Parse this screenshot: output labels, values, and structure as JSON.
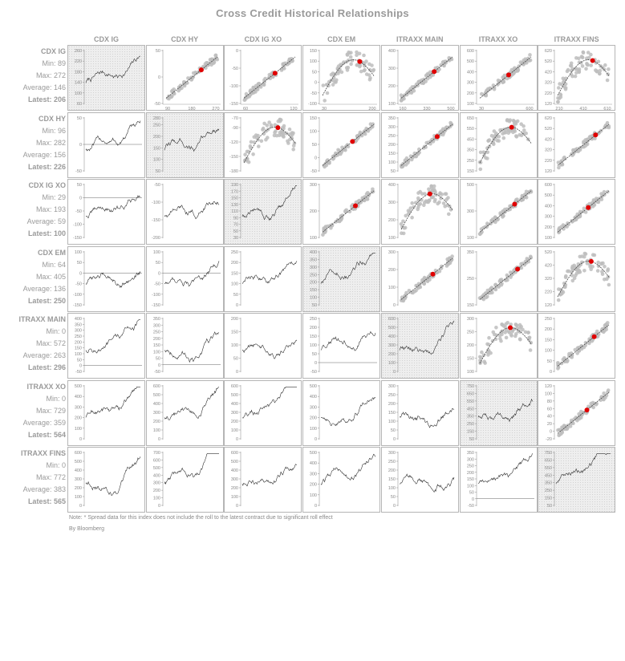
{
  "title": "Cross Credit Historical Relationships",
  "notes": {
    "footnote": "Note: * Spread data for this index does not include the roll to the latest contract due to significant roll effect",
    "credit": "By Bloomberg"
  },
  "colors": {
    "grid_border": "#b5b5b5",
    "scatter_dot": "#bdbdbd",
    "highlight": "#e00000",
    "line": "#333333",
    "label_text": "#9a9a9a"
  },
  "columns": [
    "CDX IG",
    "CDX HY",
    "CDX IG XO",
    "CDX EM",
    "ITRAXX MAIN",
    "ITRAXX XO",
    "ITRAXX FINS"
  ],
  "rows": [
    {
      "name": "CDX IG",
      "min_label": "Min:",
      "min": 89,
      "max_label": "Max:",
      "max": 272,
      "avg_label": "Average:",
      "average": 146,
      "latest_label": "Latest:",
      "latest": 206
    },
    {
      "name": "CDX HY",
      "min_label": "Min:",
      "min": 96,
      "max_label": "Max:",
      "max": 282,
      "avg_label": "Average:",
      "average": 156,
      "latest_label": "Latest:",
      "latest": 226
    },
    {
      "name": "CDX IG XO",
      "min_label": "Min:",
      "min": 29,
      "max_label": "Max:",
      "max": 193,
      "avg_label": "Average:",
      "average": 59,
      "latest_label": "Latest:",
      "latest": 100
    },
    {
      "name": "CDX EM",
      "min_label": "Min:",
      "min": 64,
      "max_label": "Max:",
      "max": 405,
      "avg_label": "Average:",
      "average": 136,
      "latest_label": "Latest:",
      "latest": 250
    },
    {
      "name": "ITRAXX MAIN",
      "min_label": "Min:",
      "min": 0,
      "max_label": "Max:",
      "max": 572,
      "avg_label": "Average:",
      "average": 263,
      "latest_label": "Latest:",
      "latest": 296
    },
    {
      "name": "ITRAXX XO",
      "min_label": "Min:",
      "min": 0,
      "max_label": "Max:",
      "max": 729,
      "avg_label": "Average:",
      "average": 359,
      "latest_label": "Latest:",
      "latest": 564
    },
    {
      "name": "ITRAXX FINS",
      "min_label": "Min:",
      "min": 0,
      "max_label": "Max:",
      "max": 772,
      "avg_label": "Average:",
      "average": 383,
      "latest_label": "Latest:",
      "latest": 565
    }
  ],
  "chart_data": {
    "type": "scatter",
    "title": "Cross Credit Historical Relationships",
    "layout": "7x7 matrix: diagonal = index history, upper triangle = scatter of index pairs with trend curve and latest point, lower triangle = spread between index pairs",
    "upper_panels": [
      {
        "row": 0,
        "col": 1,
        "y_ticks": [
          -50,
          0,
          50
        ],
        "x_ticks": [
          90,
          180,
          270
        ]
      },
      {
        "row": 0,
        "col": 2,
        "y_ticks": [
          -150,
          -100,
          -50,
          0
        ],
        "x_ticks": [
          60,
          120
        ]
      },
      {
        "row": 0,
        "col": 3,
        "y_ticks": [
          -100,
          -50,
          0,
          50,
          100,
          150
        ],
        "x_ticks": [
          30,
          200
        ]
      },
      {
        "row": 0,
        "col": 4,
        "y_ticks": [
          100,
          200,
          300,
          400
        ],
        "x_ticks": [
          160,
          330,
          500
        ]
      },
      {
        "row": 0,
        "col": 5,
        "y_ticks": [
          100,
          200,
          300,
          400,
          500,
          600
        ],
        "x_ticks": [
          30,
          600
        ]
      },
      {
        "row": 0,
        "col": 6,
        "y_ticks": [
          120,
          220,
          320,
          420,
          520,
          620
        ],
        "x_ticks": [
          210,
          410,
          610
        ]
      },
      {
        "row": 1,
        "col": 2,
        "y_ticks": [
          -180,
          -150,
          -120,
          -90,
          -70
        ]
      },
      {
        "row": 1,
        "col": 3,
        "y_ticks": [
          -50,
          0,
          50,
          100,
          150
        ]
      },
      {
        "row": 1,
        "col": 4,
        "y_ticks": [
          50,
          100,
          150,
          200,
          250,
          300,
          350
        ]
      },
      {
        "row": 1,
        "col": 5,
        "y_ticks": [
          150,
          250,
          350,
          450,
          550,
          650
        ]
      },
      {
        "row": 1,
        "col": 6,
        "y_ticks": [
          120,
          220,
          320,
          420,
          520,
          620
        ]
      },
      {
        "row": 2,
        "col": 3,
        "y_ticks": [
          100,
          200,
          300
        ]
      },
      {
        "row": 2,
        "col": 4,
        "y_ticks": [
          100,
          200,
          300,
          400
        ]
      },
      {
        "row": 2,
        "col": 5,
        "y_ticks": [
          100,
          300,
          500
        ]
      },
      {
        "row": 2,
        "col": 6,
        "y_ticks": [
          100,
          200,
          300,
          400,
          500,
          600
        ]
      },
      {
        "row": 3,
        "col": 4,
        "y_ticks": [
          0,
          100,
          200,
          300
        ]
      },
      {
        "row": 3,
        "col": 5,
        "y_ticks": [
          150,
          250,
          350
        ]
      },
      {
        "row": 3,
        "col": 6,
        "y_ticks": [
          120,
          220,
          320,
          420,
          520
        ]
      },
      {
        "row": 4,
        "col": 5,
        "y_ticks": [
          100,
          150,
          200,
          250,
          300
        ]
      },
      {
        "row": 4,
        "col": 6,
        "y_ticks": [
          0,
          50,
          100,
          150,
          200,
          250
        ]
      },
      {
        "row": 5,
        "col": 6,
        "y_ticks": [
          -20,
          0,
          20,
          40,
          60,
          80,
          100,
          120
        ]
      }
    ],
    "diagonal_panels": [
      {
        "index": "CDX IG",
        "y_ticks": [
          60,
          100,
          140,
          180,
          220,
          260
        ]
      },
      {
        "index": "CDX HY",
        "y_ticks": [
          50,
          100,
          150,
          200,
          250,
          280
        ]
      },
      {
        "index": "CDX IG XO",
        "y_ticks": [
          30,
          50,
          70,
          90,
          110,
          130,
          150,
          170,
          190
        ]
      },
      {
        "index": "CDX EM",
        "y_ticks": [
          50,
          100,
          150,
          200,
          250,
          300,
          350,
          400
        ]
      },
      {
        "index": "ITRAXX MAIN",
        "y_ticks": [
          0,
          100,
          200,
          300,
          400,
          500,
          600
        ]
      },
      {
        "index": "ITRAXX XO",
        "y_ticks": [
          50,
          150,
          250,
          350,
          450,
          550,
          650,
          750
        ]
      },
      {
        "index": "ITRAXX FINS",
        "y_ticks": [
          50,
          150,
          250,
          350,
          450,
          550,
          650,
          750
        ]
      }
    ],
    "lower_panels": [
      {
        "row": 1,
        "col": 0,
        "y_ticks": [
          -50,
          0,
          50
        ]
      },
      {
        "row": 2,
        "col": 0,
        "y_ticks": [
          -150,
          -100,
          -50,
          0,
          50
        ]
      },
      {
        "row": 2,
        "col": 1,
        "y_ticks": [
          -200,
          -150,
          -100,
          -50
        ]
      },
      {
        "row": 3,
        "col": 0,
        "y_ticks": [
          -150,
          -100,
          -50,
          0,
          50,
          100
        ]
      },
      {
        "row": 3,
        "col": 1,
        "y_ticks": [
          -150,
          -100,
          -50,
          0,
          50,
          100
        ]
      },
      {
        "row": 3,
        "col": 2,
        "y_ticks": [
          0,
          50,
          100,
          150,
          200,
          250
        ]
      },
      {
        "row": 4,
        "col": 0,
        "y_ticks": [
          -50,
          0,
          50,
          100,
          150,
          200,
          250,
          300,
          350,
          400
        ]
      },
      {
        "row": 4,
        "col": 1,
        "y_ticks": [
          -50,
          0,
          50,
          100,
          150,
          200,
          250,
          300,
          350
        ]
      },
      {
        "row": 4,
        "col": 2,
        "y_ticks": [
          0,
          50,
          100,
          150,
          200
        ]
      },
      {
        "row": 4,
        "col": 3,
        "y_ticks": [
          -50,
          0,
          50,
          100,
          150,
          200,
          250
        ]
      },
      {
        "row": 5,
        "col": 0,
        "y_ticks": [
          0,
          100,
          200,
          300,
          400,
          500
        ]
      },
      {
        "row": 5,
        "col": 1,
        "y_ticks": [
          0,
          100,
          200,
          300,
          400,
          500,
          600
        ]
      },
      {
        "row": 5,
        "col": 2,
        "y_ticks": [
          0,
          100,
          200,
          300,
          400,
          500,
          600
        ]
      },
      {
        "row": 5,
        "col": 3,
        "y_ticks": [
          0,
          100,
          200,
          300,
          400,
          500
        ]
      },
      {
        "row": 5,
        "col": 4,
        "y_ticks": [
          0,
          50,
          100,
          150,
          200,
          250,
          300
        ]
      },
      {
        "row": 6,
        "col": 0,
        "y_ticks": [
          0,
          100,
          200,
          300,
          400,
          500,
          600
        ]
      },
      {
        "row": 6,
        "col": 1,
        "y_ticks": [
          0,
          100,
          200,
          300,
          400,
          500,
          600,
          700
        ]
      },
      {
        "row": 6,
        "col": 2,
        "y_ticks": [
          0,
          100,
          200,
          300,
          400,
          500,
          600
        ]
      },
      {
        "row": 6,
        "col": 3,
        "y_ticks": [
          0,
          100,
          200,
          300,
          400,
          500
        ]
      },
      {
        "row": 6,
        "col": 4,
        "y_ticks": [
          0,
          50,
          100,
          150,
          200,
          250,
          300
        ]
      },
      {
        "row": 6,
        "col": 5,
        "y_ticks": [
          -50,
          0,
          50,
          100,
          150,
          200,
          250,
          300,
          350
        ]
      }
    ]
  }
}
